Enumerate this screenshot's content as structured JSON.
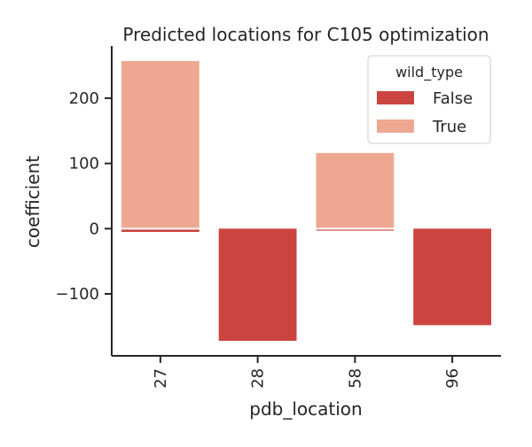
{
  "chart_data": {
    "type": "bar",
    "title": "Predicted locations for C105 optimization",
    "xlabel": "pdb_location",
    "ylabel": "coefficient",
    "categories": [
      "27",
      "28",
      "58",
      "96"
    ],
    "yticks": [
      -100,
      0,
      100,
      200
    ],
    "ytick_labels": [
      "−100",
      "0",
      "100",
      "200"
    ],
    "ylim": [
      -195,
      280
    ],
    "grid": false,
    "legend": {
      "title": "wild_type",
      "placement": "top-right"
    },
    "series": [
      {
        "name": "False",
        "color": "#cc443f",
        "values": [
          -5,
          -172,
          -3,
          -148
        ]
      },
      {
        "name": "True",
        "color": "#eea891",
        "values": [
          257,
          null,
          116,
          null
        ]
      }
    ]
  }
}
